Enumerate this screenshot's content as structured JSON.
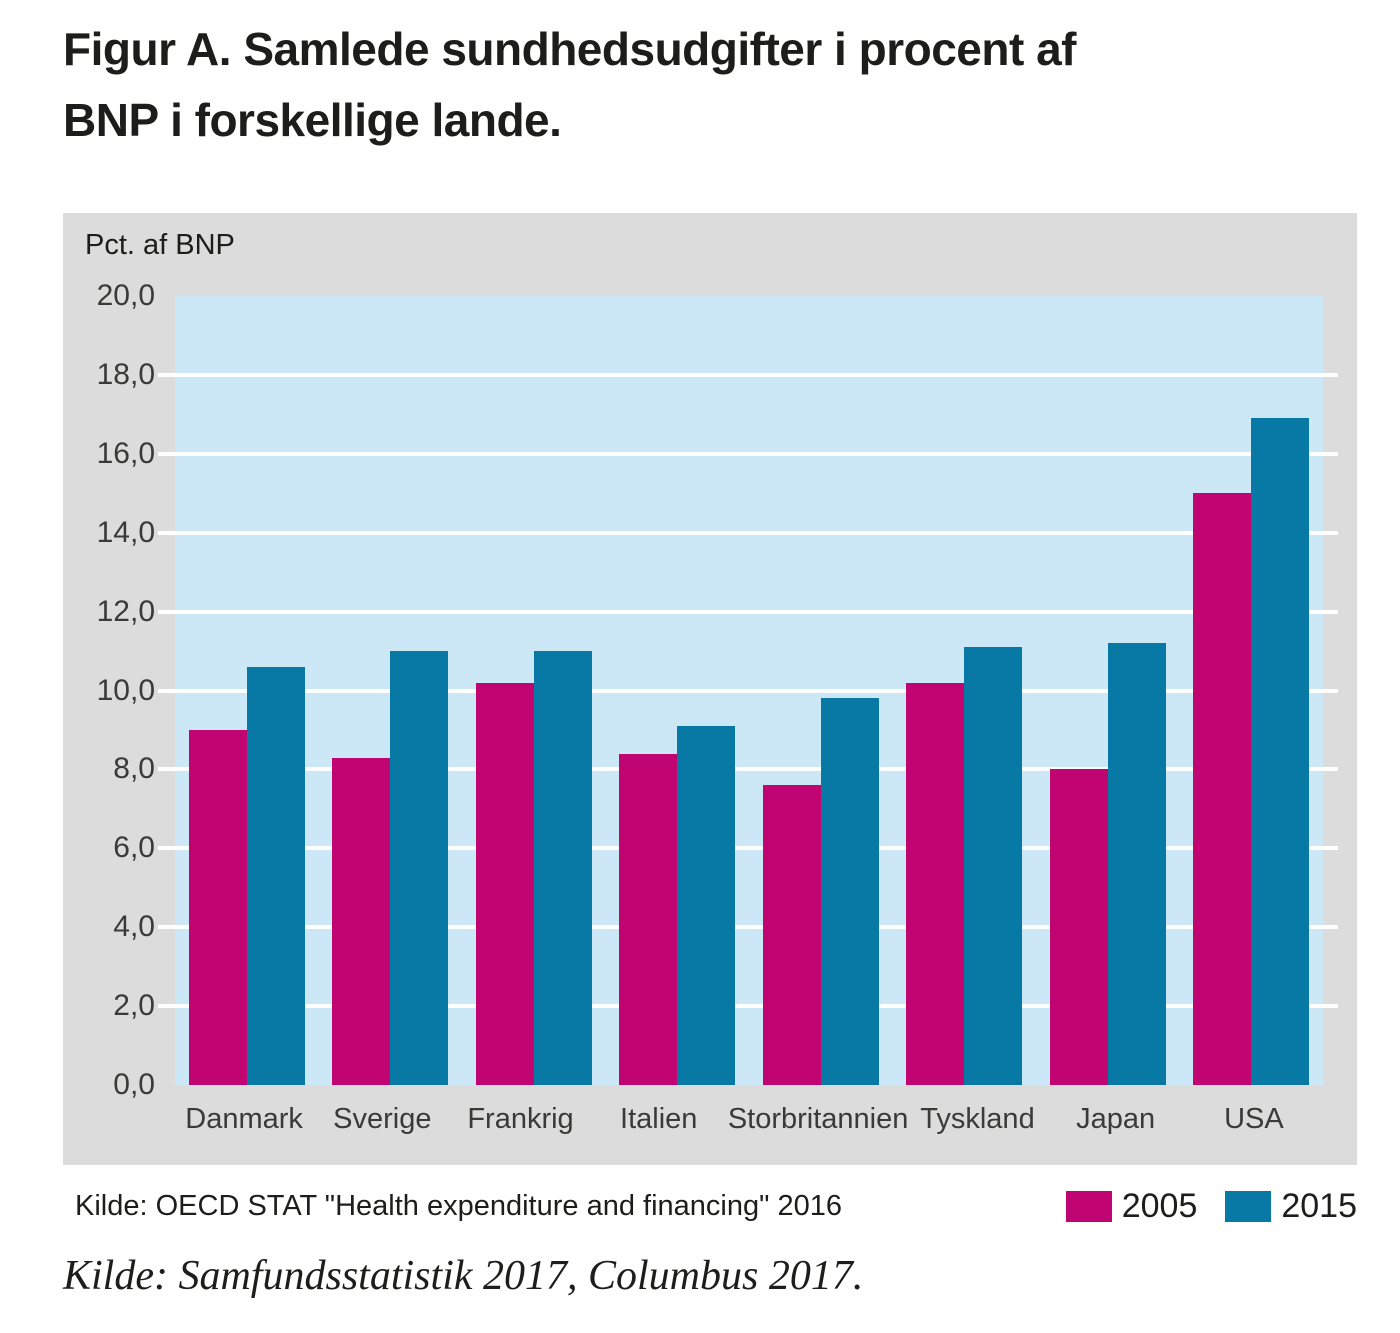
{
  "title": {
    "line1": "Figur A. Samlede sundhedsudgifter i procent af",
    "line2": "BNP i forskellige lande."
  },
  "chart_data": {
    "type": "bar",
    "title": "Figur A. Samlede sundhedsudgifter i procent af BNP i forskellige lande.",
    "unit_label": "Pct. af BNP",
    "categories": [
      "Danmark",
      "Sverige",
      "Frankrig",
      "Italien",
      "Storbritannien",
      "Tyskland",
      "Japan",
      "USA"
    ],
    "series": [
      {
        "name": "2005",
        "color": "#c00572",
        "values": [
          9.0,
          8.3,
          10.2,
          8.4,
          7.6,
          10.2,
          8.0,
          15.0
        ]
      },
      {
        "name": "2015",
        "color": "#0879a4",
        "values": [
          10.6,
          11.0,
          11.0,
          9.1,
          9.8,
          11.1,
          11.2,
          16.9
        ]
      }
    ],
    "ylim": [
      0,
      20
    ],
    "yticks": [
      {
        "value": 0,
        "label": "0,0"
      },
      {
        "value": 2,
        "label": "2,0"
      },
      {
        "value": 4,
        "label": "4,0"
      },
      {
        "value": 6,
        "label": "6,0"
      },
      {
        "value": 8,
        "label": "8,0"
      },
      {
        "value": 10,
        "label": "10,0"
      },
      {
        "value": 12,
        "label": "12,0"
      },
      {
        "value": 14,
        "label": "14,0"
      },
      {
        "value": 16,
        "label": "16,0"
      },
      {
        "value": 18,
        "label": "18,0"
      },
      {
        "value": 20,
        "label": "20,0"
      }
    ],
    "gridline_values": [
      2,
      4,
      6,
      8,
      10,
      12,
      14,
      16,
      18
    ],
    "grid": "horizontal",
    "legend_position": "bottom-right",
    "colors": {
      "panel_bg": "#dcdcdc",
      "plot_bg": "#cce8f6",
      "grid": "#ffffff",
      "axis_text": "#3a3a39",
      "text": "#1d1d1b"
    }
  },
  "source_note": "Kilde: OECD STAT \"Health expenditure and financing\" 2016",
  "caption": "Kilde: Samfundsstatistik 2017, Columbus 2017."
}
